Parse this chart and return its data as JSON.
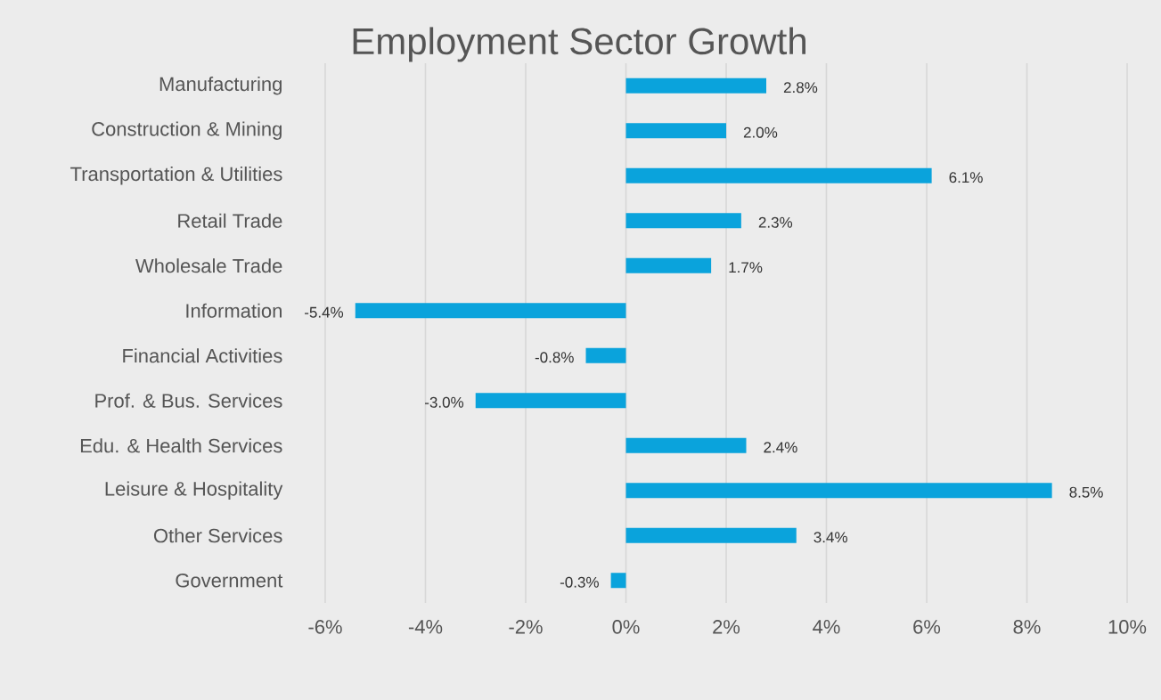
{
  "chart_data": {
    "type": "bar",
    "orientation": "horizontal",
    "title": "Employment Sector Growth",
    "categories": [
      "Manufacturing",
      "Construction & Mining",
      "Transportation & Utilities",
      "Retail Trade",
      "Wholesale Trade",
      "Information",
      "Financial Activities",
      "Prof. & Bus. Services",
      "Edu. & Health Services",
      "Leisure & Hospitality",
      "Other Services",
      "Government"
    ],
    "values": [
      2.8,
      2.0,
      6.1,
      2.3,
      1.7,
      -5.4,
      -0.8,
      -3.0,
      2.4,
      8.5,
      3.4,
      -0.3
    ],
    "value_labels": [
      "2.8%",
      "2.0%",
      "6.1%",
      "2.3%",
      "1.7%",
      "-5.4%",
      "-0.8%",
      "-3.0%",
      "2.4%",
      "8.5%",
      "3.4%",
      "-0.3%"
    ],
    "color": "#0aa3dc",
    "xlim": [
      -6,
      10
    ],
    "xticks": [
      {
        "value": -6,
        "label": "-6%"
      },
      {
        "value": -4,
        "label": "-4%"
      },
      {
        "value": -2,
        "label": "-2%"
      },
      {
        "value": 0,
        "label": "0%"
      },
      {
        "value": 2,
        "label": "2%"
      },
      {
        "value": 4,
        "label": "4%"
      },
      {
        "value": 6,
        "label": "6%"
      },
      {
        "value": 8,
        "label": "8%"
      },
      {
        "value": 10,
        "label": "10%"
      }
    ],
    "grid": "x"
  }
}
